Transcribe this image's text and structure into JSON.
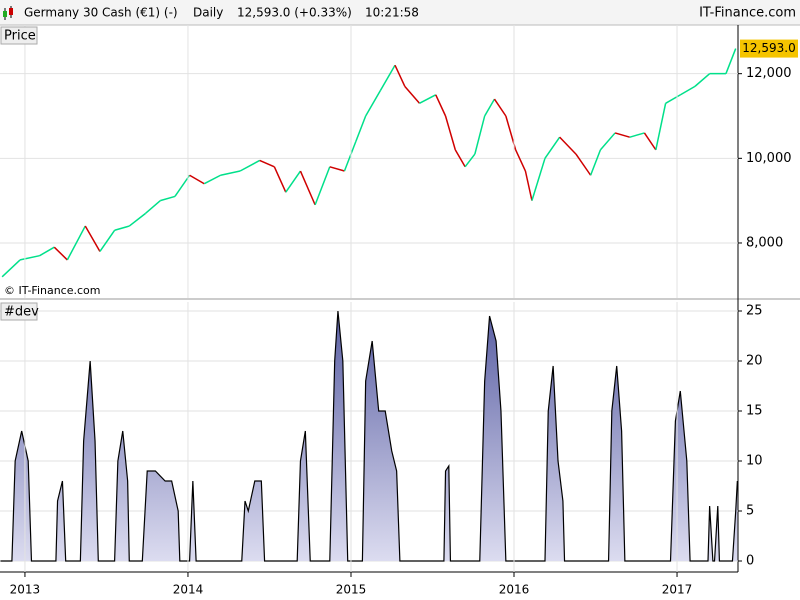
{
  "header": {
    "instrument": "Germany 30 Cash (€1) (-)",
    "period": "Daily",
    "quote": "12,593.0 (+0.33%)",
    "time": "10:21:58",
    "brand": "IT-Finance.com"
  },
  "chart_data": [
    {
      "type": "line",
      "title": "Price",
      "watermark": "© IT-Finance.com",
      "last_label": "12,593.0",
      "up_color": "#00e08a",
      "down_color": "#d00000",
      "grid": true,
      "x": [
        2012.86,
        2012.97,
        2013.09,
        2013.18,
        2013.26,
        2013.37,
        2013.46,
        2013.55,
        2013.64,
        2013.74,
        2013.83,
        2013.92,
        2014.01,
        2014.1,
        2014.2,
        2014.32,
        2014.44,
        2014.53,
        2014.6,
        2014.69,
        2014.78,
        2014.87,
        2014.96,
        2015.03,
        2015.09,
        2015.18,
        2015.27,
        2015.33,
        2015.42,
        2015.52,
        2015.58,
        2015.64,
        2015.7,
        2015.76,
        2015.82,
        2015.88,
        2015.95,
        2016.01,
        2016.07,
        2016.11,
        2016.19,
        2016.28,
        2016.38,
        2016.47,
        2016.53,
        2016.62,
        2016.71,
        2016.8,
        2016.87,
        2016.93,
        2017.02,
        2017.11,
        2017.2,
        2017.3,
        2017.36
      ],
      "values": [
        7200,
        7600,
        7700,
        7900,
        7600,
        8400,
        7800,
        8300,
        8400,
        8700,
        9000,
        9100,
        9600,
        9400,
        9600,
        9700,
        9950,
        9800,
        9200,
        9700,
        8900,
        9800,
        9700,
        10400,
        11000,
        11600,
        12200,
        11700,
        11300,
        11500,
        11000,
        10200,
        9800,
        10100,
        11000,
        11400,
        11000,
        10200,
        9700,
        9000,
        10000,
        10500,
        10100,
        9600,
        10200,
        10600,
        10500,
        10600,
        10200,
        11300,
        11500,
        11700,
        12000,
        12000,
        12593
      ],
      "xlim": [
        2012.847,
        2017.374
      ],
      "ylim": [
        6700,
        13150
      ],
      "yticks": [
        {
          "value": 8000,
          "label": "8,000"
        },
        {
          "value": 10000,
          "label": "10,000"
        },
        {
          "value": 12000,
          "label": "12,000"
        }
      ]
    },
    {
      "type": "area",
      "title": "#dev",
      "color": "#5a5fa3",
      "grid": true,
      "x": [
        2012.85,
        2012.92,
        2012.94,
        2012.98,
        2013.02,
        2013.04,
        2013.19,
        2013.2,
        2013.23,
        2013.25,
        2013.34,
        2013.36,
        2013.4,
        2013.43,
        2013.45,
        2013.55,
        2013.57,
        2013.6,
        2013.63,
        2013.64,
        2013.72,
        2013.75,
        2013.8,
        2013.86,
        2013.9,
        2013.94,
        2013.95,
        2014.01,
        2014.03,
        2014.05,
        2014.33,
        2014.35,
        2014.37,
        2014.41,
        2014.45,
        2014.47,
        2014.67,
        2014.69,
        2014.72,
        2014.75,
        2014.87,
        2014.9,
        2014.92,
        2014.95,
        2014.98,
        2015.07,
        2015.09,
        2015.13,
        2015.17,
        2015.21,
        2015.25,
        2015.28,
        2015.3,
        2015.57,
        2015.58,
        2015.6,
        2015.61,
        2015.79,
        2015.82,
        2015.85,
        2015.89,
        2015.92,
        2015.95,
        2016.19,
        2016.21,
        2016.24,
        2016.27,
        2016.3,
        2016.31,
        2016.58,
        2016.6,
        2016.63,
        2016.66,
        2016.68,
        2016.96,
        2016.99,
        2017.02,
        2017.06,
        2017.08,
        2017.19,
        2017.2,
        2017.22,
        2017.23,
        2017.25,
        2017.26,
        2017.34,
        2017.36,
        2017.37
      ],
      "values": [
        0,
        0,
        10,
        13,
        10,
        0,
        0,
        6,
        8,
        0,
        0,
        12,
        20,
        12,
        0,
        0,
        10,
        13,
        8,
        0,
        0,
        9,
        9,
        8,
        8,
        5,
        0,
        0,
        8,
        0,
        0,
        6,
        5,
        8,
        8,
        0,
        0,
        10,
        13,
        0,
        0,
        20,
        25,
        20,
        0,
        0,
        18,
        22,
        15,
        15,
        11,
        9,
        0,
        0,
        9,
        9.5,
        0,
        0,
        18,
        24.5,
        22,
        15,
        0,
        0,
        15,
        19.5,
        10,
        6,
        0,
        0,
        15,
        19.5,
        13,
        0,
        0,
        14,
        17,
        10,
        0,
        0,
        5.5,
        0,
        0,
        5.5,
        0,
        0,
        5,
        8
      ],
      "xlim": [
        2012.847,
        2017.374
      ],
      "ylim": [
        -1.1,
        25.9
      ],
      "yticks": [
        0,
        5,
        10,
        15,
        20,
        25
      ],
      "xticks": [
        2013,
        2014,
        2015,
        2016,
        2017
      ]
    }
  ]
}
